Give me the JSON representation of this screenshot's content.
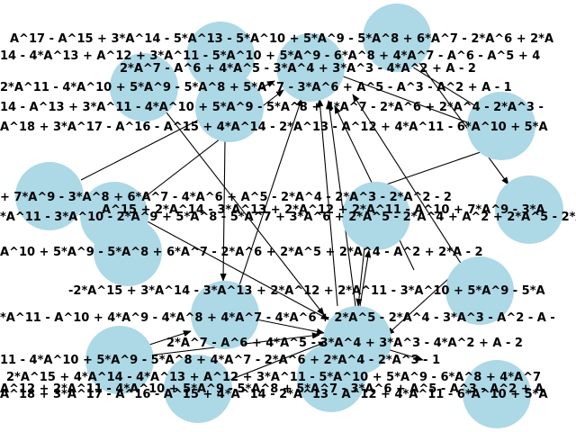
{
  "colors": {
    "node_fill": "#add8e6",
    "edge": "#000000",
    "text": "#000000",
    "background": "#ffffff"
  },
  "nodes": [
    {
      "id": "n1",
      "label": "A^17 - A^15 + 3*A^14 - 5*A^13 - 5*A^10 + 5*A^9 - 5*A^8 + 6*A^7 - 2*A^6 + 2*A"
    },
    {
      "id": "n2",
      "label": "14 - 4*A^13 + A^12 + 3*A^11 - 5*A^10 + 5*A^9 - 6*A^8 + 4*A^7 - A^6 - A^5 + 4"
    },
    {
      "id": "n3",
      "label": "2*A^7 - A^6 + 4*A^5 - 3*A^4 + 3*A^3 - 4*A^2 + A - 2"
    },
    {
      "id": "n4",
      "label": "2*A^11 - 4*A^10 + 5*A^9 - 5*A^8 + 5*A^7 - 3*A^6 + A^5 - A^3 - A^2 + A - 1"
    },
    {
      "id": "n5",
      "label": "14 - A^13 + 3*A^11 - 4*A^10 + 5*A^9 - 5*A^8 + 4*A^7 - 2*A^6 + 2*A^4 - 2*A^3 -"
    },
    {
      "id": "n6",
      "label": "A^18 + 3*A^17 - A^16 - A^15 + 4*A^14 - 2*A^13 - A^12 + 4*A^11 - 6*A^10 + 5*A"
    },
    {
      "id": "n7",
      "label": "+ 7*A^9 - 3*A^8 + 6*A^7 - 4*A^6 + A^5 - 2*A^4 - 2*A^3 - 2*A^2 - 2"
    },
    {
      "id": "n8",
      "label": "A^15 + 2*A^14 - 3*A^13 + 2*A^12 + 2*A^11 - A^10 + 7*A^9 - 3*A"
    },
    {
      "id": "n9",
      "label": "*A^11 - 3*A^10 - 2*A^9 + 5*A^8 - 5*A^7 + 3*A^6 + 2*A^5 - 2*A^4 + A^2 + 2*A^5 - 2*A"
    },
    {
      "id": "n10",
      "label": "A^10 + 5*A^9 - 5*A^8 + 6*A^7 - 2*A^6 + 2*A^5 + 2*A^4 - A^2 + 2*A - 2"
    },
    {
      "id": "n11",
      "label": "-2*A^15 + 3*A^14 - 3*A^13 + 2*A^12 + 2*A^11 - 3*A^10 + 5*A^9 - 5*A"
    },
    {
      "id": "n12",
      "label": "*A^11 - A^10 + 4*A^9 - 4*A^8 + 4*A^7 - 4*A^6 + 2*A^5 - 2*A^4 - 3*A^3 - A^2 - A -"
    },
    {
      "id": "n13",
      "label": "2*A^7 - A^6 + 4*A^5 - 3*A^4 + 3*A^3 - 4*A^2 + A - 2"
    },
    {
      "id": "n14",
      "label": "11 - 4*A^10 + 5*A^9 - 5*A^8 + 4*A^7 - 2*A^6 + 2*A^4 - 2*A^3 - 1"
    },
    {
      "id": "n15",
      "label": "2*A^15 + 4*A^14 - 4*A^13 + A^12 + 3*A^11 - 5*A^10 + 5*A^9 - 6*A^8 + 4*A^7"
    },
    {
      "id": "n16",
      "label": "A^12 + 2*A^11 - 4*A^10 + 5*A^9 - 5*A^8 + 5*A^7 - 3*A^6 + A^5 - A^3 - A^2 + A"
    },
    {
      "id": "n17",
      "label": "A^18 + 3*A^17 - A^16 - A^15 + 4*A^14 - 2*A^13 - A^12 + 4*A^11 - 6*A^10 + 5*A"
    }
  ]
}
